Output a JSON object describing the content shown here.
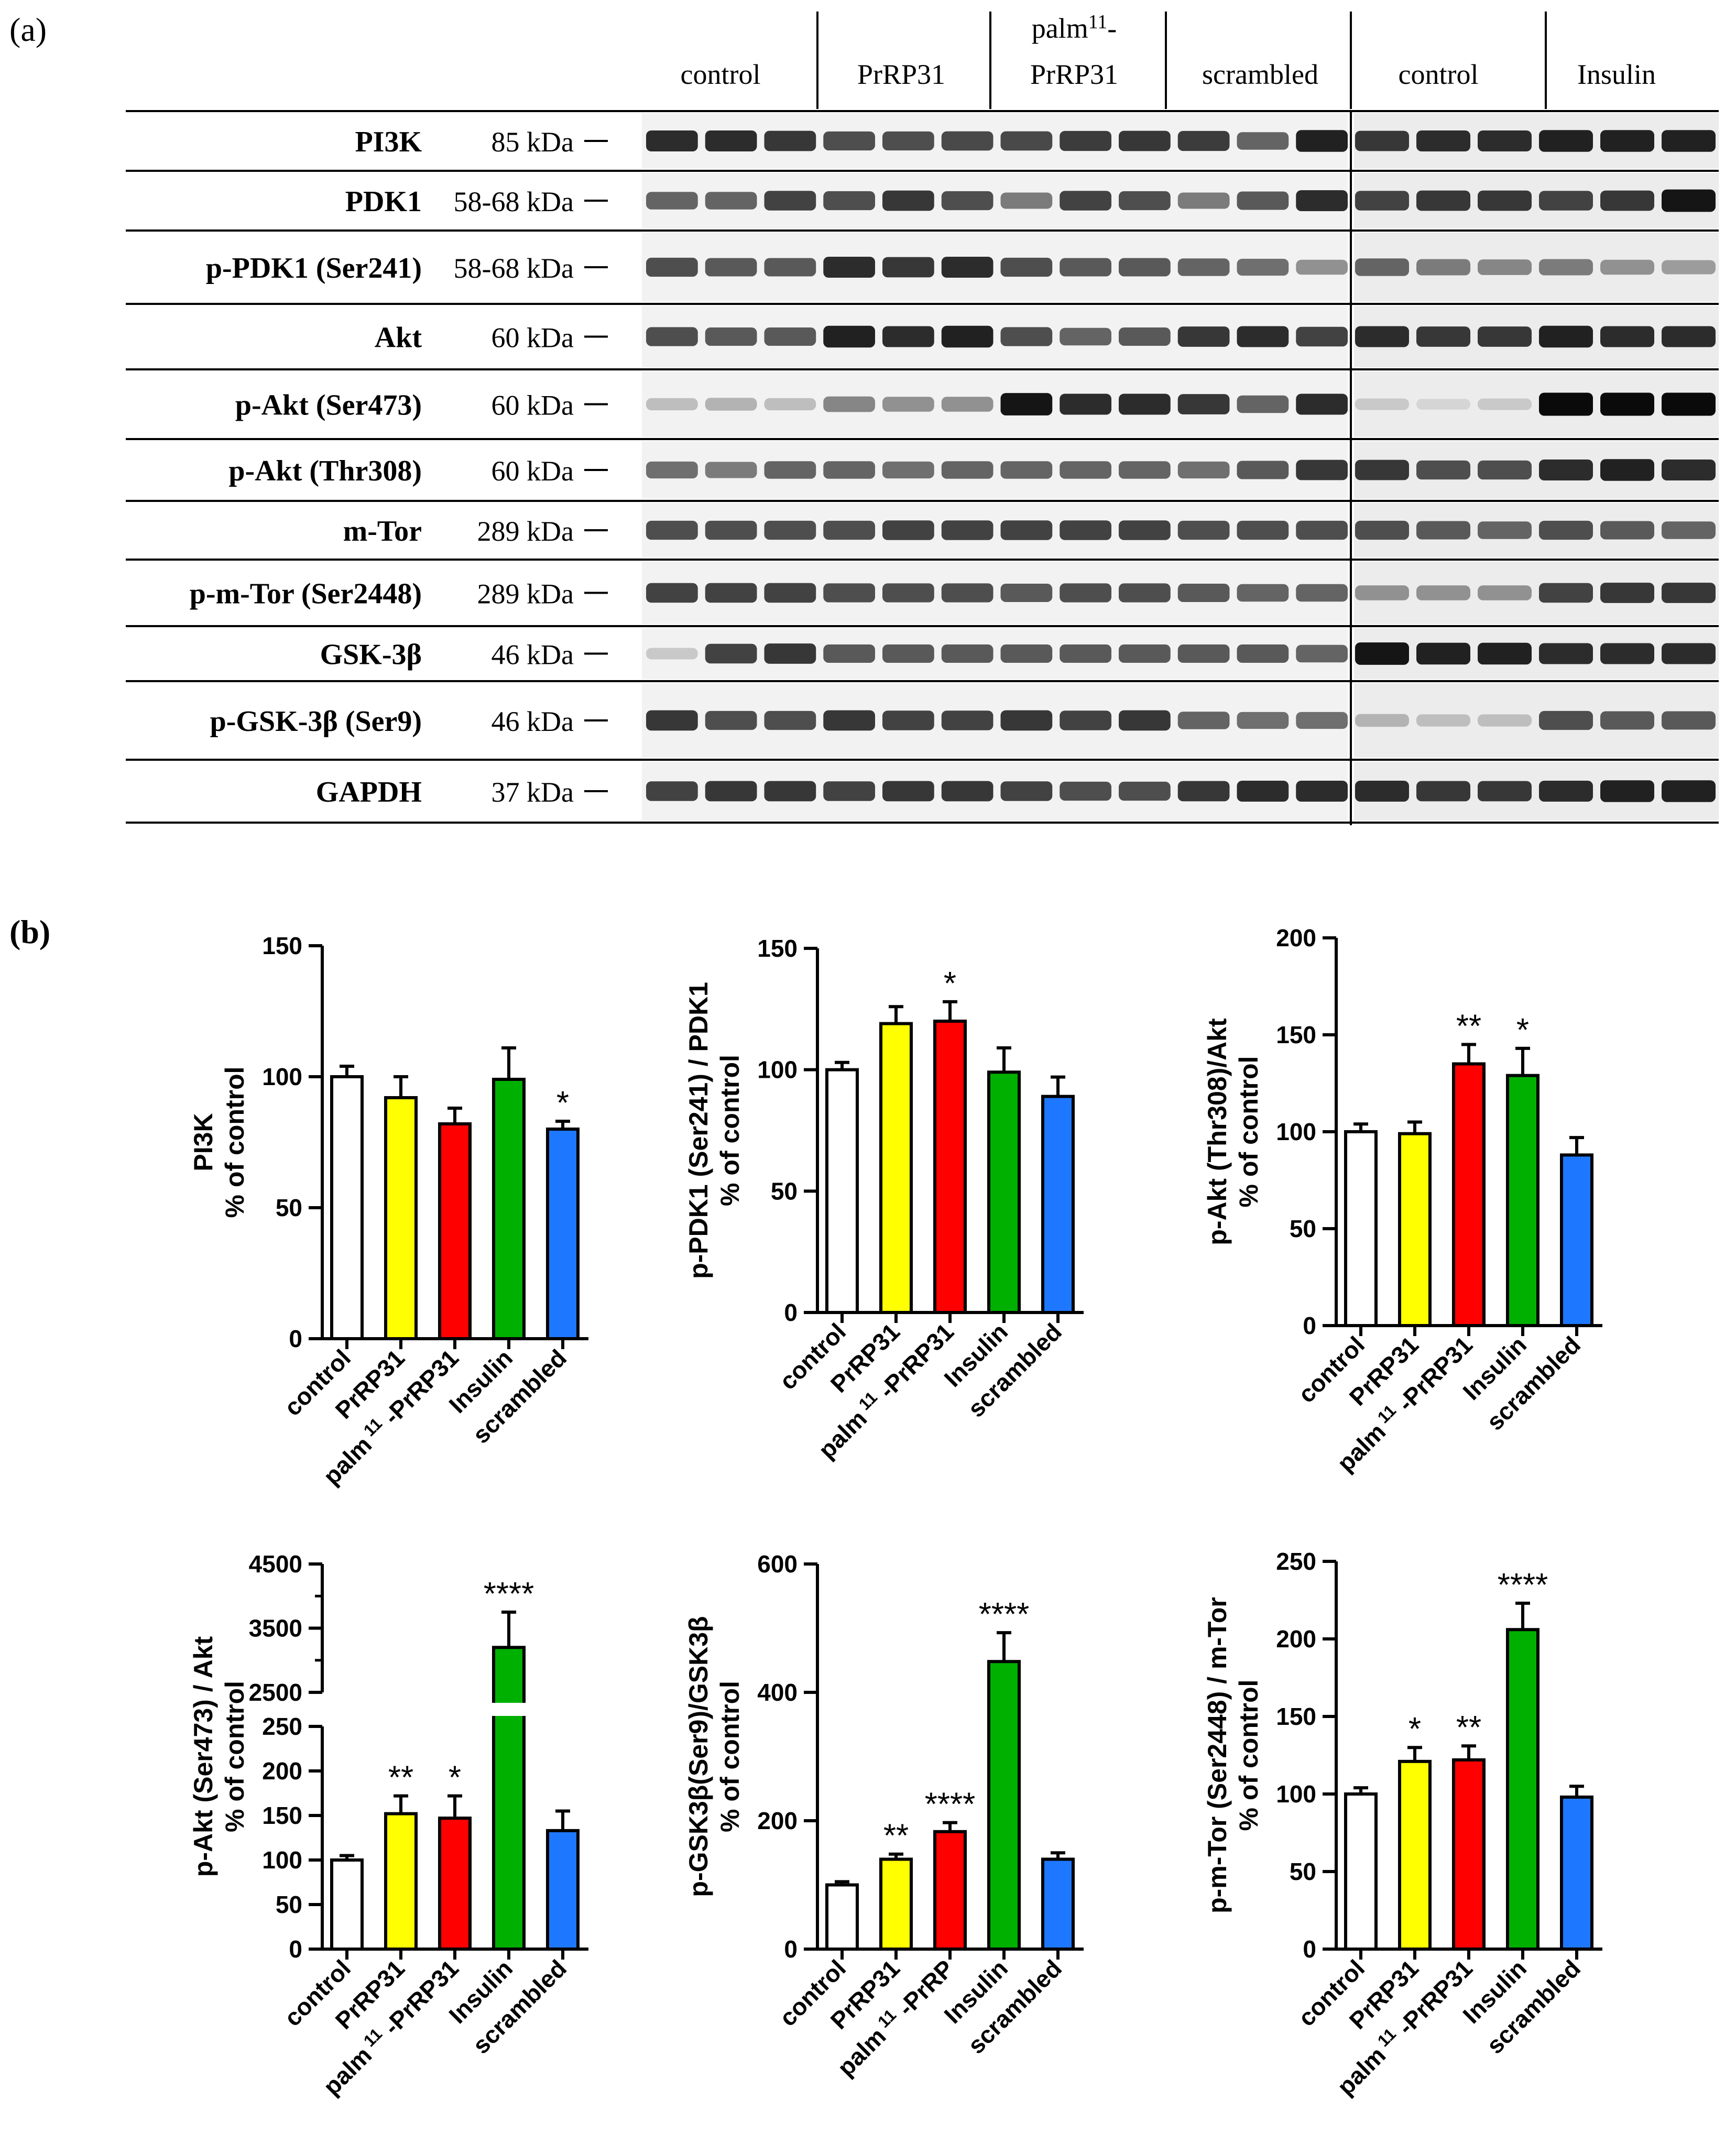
{
  "panel_labels": {
    "a": "(a)",
    "b": "(b)"
  },
  "blot": {
    "lane_groups": [
      {
        "label": "control",
        "lanes": 3
      },
      {
        "label": "PrRP31",
        "lanes": 3
      },
      {
        "label_line1": "palm",
        "label_sup": "11",
        "label_line1_end": "-",
        "label_line2": "PrRP31",
        "lanes": 3
      },
      {
        "label": "scrambled",
        "lanes": 3
      },
      {
        "label": "control",
        "lanes": 3
      },
      {
        "label": "Insulin",
        "lanes": 3
      }
    ],
    "rows": [
      {
        "protein": "PI3K",
        "mw": "85 kDa",
        "intensity": [
          0.85,
          0.85,
          0.8,
          0.7,
          0.7,
          0.72,
          0.72,
          0.78,
          0.8,
          0.78,
          0.6,
          0.9,
          0.8,
          0.85,
          0.85,
          0.9,
          0.9,
          0.9
        ]
      },
      {
        "protein": "PDK1",
        "mw": "58-68 kDa",
        "intensity": [
          0.6,
          0.6,
          0.75,
          0.7,
          0.8,
          0.7,
          0.5,
          0.75,
          0.7,
          0.5,
          0.65,
          0.85,
          0.75,
          0.8,
          0.8,
          0.75,
          0.8,
          0.95
        ]
      },
      {
        "protein": "p-PDK1 (Ser241)",
        "mw": "58-68 kDa",
        "intensity": [
          0.7,
          0.65,
          0.65,
          0.85,
          0.8,
          0.85,
          0.7,
          0.65,
          0.65,
          0.6,
          0.55,
          0.4,
          0.6,
          0.5,
          0.45,
          0.5,
          0.4,
          0.35
        ]
      },
      {
        "protein": "Akt",
        "mw": "60 kDa",
        "intensity": [
          0.7,
          0.65,
          0.65,
          0.9,
          0.85,
          0.9,
          0.7,
          0.6,
          0.65,
          0.8,
          0.85,
          0.75,
          0.85,
          0.8,
          0.8,
          0.9,
          0.85,
          0.85
        ]
      },
      {
        "protein": "p-Akt (Ser473)",
        "mw": "60 kDa",
        "intensity": [
          0.2,
          0.25,
          0.2,
          0.45,
          0.4,
          0.4,
          0.95,
          0.85,
          0.85,
          0.8,
          0.6,
          0.85,
          0.15,
          0.1,
          0.15,
          1.0,
          1.0,
          1.0
        ]
      },
      {
        "protein": "p-Akt (Thr308)",
        "mw": "60 kDa",
        "intensity": [
          0.55,
          0.5,
          0.6,
          0.6,
          0.55,
          0.6,
          0.6,
          0.6,
          0.6,
          0.55,
          0.65,
          0.8,
          0.8,
          0.7,
          0.7,
          0.85,
          0.9,
          0.85
        ]
      },
      {
        "protein": "m-Tor",
        "mw": "289 kDa",
        "intensity": [
          0.7,
          0.7,
          0.7,
          0.7,
          0.75,
          0.75,
          0.75,
          0.75,
          0.75,
          0.7,
          0.7,
          0.7,
          0.7,
          0.65,
          0.6,
          0.7,
          0.65,
          0.6
        ]
      },
      {
        "protein": "p-m-Tor (Ser2448)",
        "mw": "289 kDa",
        "intensity": [
          0.75,
          0.75,
          0.75,
          0.7,
          0.7,
          0.7,
          0.65,
          0.7,
          0.7,
          0.65,
          0.6,
          0.6,
          0.4,
          0.4,
          0.4,
          0.75,
          0.8,
          0.8
        ]
      },
      {
        "protein": "GSK-3β",
        "mw": "46 kDa",
        "intensity": [
          0.15,
          0.75,
          0.8,
          0.65,
          0.65,
          0.65,
          0.65,
          0.65,
          0.65,
          0.65,
          0.65,
          0.6,
          0.95,
          0.9,
          0.9,
          0.85,
          0.85,
          0.85
        ]
      },
      {
        "protein": "p-GSK-3β (Ser9)",
        "mw": "46 kDa",
        "intensity": [
          0.8,
          0.7,
          0.7,
          0.8,
          0.75,
          0.75,
          0.8,
          0.75,
          0.8,
          0.6,
          0.55,
          0.55,
          0.25,
          0.2,
          0.2,
          0.7,
          0.65,
          0.65
        ]
      },
      {
        "protein": "GAPDH",
        "mw": "37 kDa",
        "intensity": [
          0.75,
          0.8,
          0.8,
          0.75,
          0.8,
          0.8,
          0.75,
          0.7,
          0.7,
          0.8,
          0.85,
          0.85,
          0.85,
          0.8,
          0.8,
          0.85,
          0.9,
          0.9
        ]
      }
    ]
  },
  "colors": {
    "control": "#ffffff",
    "PrRP31": "#ffff00",
    "palm11-PrRP31": "#ff0000",
    "Insulin": "#00b000",
    "scrambled": "#1e78ff"
  },
  "chart_data": [
    {
      "type": "bar",
      "categories": [
        "control",
        "PrRP31",
        "palm11-PrRP31",
        "Insulin",
        "scrambled"
      ],
      "category_labels": [
        {
          "pre": "control"
        },
        {
          "pre": "PrRP31"
        },
        {
          "pre": "palm",
          "sup": "11",
          "post": "-PrRP31"
        },
        {
          "pre": "Insulin"
        },
        {
          "pre": "scrambled"
        }
      ],
      "values": [
        100,
        92,
        82,
        99,
        80
      ],
      "errors": [
        4,
        8,
        6,
        12,
        3
      ],
      "significance": [
        "",
        "",
        "",
        "",
        "*"
      ],
      "ylabel_line1": "PI3K",
      "ylabel_line2": "% of control",
      "ylim": [
        0,
        150
      ],
      "yticks": [
        0,
        50,
        100,
        150
      ]
    },
    {
      "type": "bar",
      "categories": [
        "control",
        "PrRP31",
        "palm11-PrRP31",
        "Insulin",
        "scrambled"
      ],
      "category_labels": [
        {
          "pre": "control"
        },
        {
          "pre": "PrRP31"
        },
        {
          "pre": "palm",
          "sup": "11",
          "post": "-PrRP31"
        },
        {
          "pre": "Insulin"
        },
        {
          "pre": "scrambled"
        }
      ],
      "values": [
        100,
        119,
        120,
        99,
        89
      ],
      "errors": [
        3,
        7,
        8,
        10,
        8
      ],
      "significance": [
        "",
        "",
        "*",
        "",
        ""
      ],
      "ylabel_line1": "p-PDK1 (Ser241) / PDK1",
      "ylabel_line2": "% of control",
      "ylim": [
        0,
        150
      ],
      "yticks": [
        0,
        50,
        100,
        150
      ]
    },
    {
      "type": "bar",
      "categories": [
        "control",
        "PrRP31",
        "palm11-PrRP31",
        "Insulin",
        "scrambled"
      ],
      "category_labels": [
        {
          "pre": "control"
        },
        {
          "pre": "PrRP31"
        },
        {
          "pre": "palm",
          "sup": "11",
          "post": "-PrRP31"
        },
        {
          "pre": "Insulin"
        },
        {
          "pre": "scrambled"
        }
      ],
      "values": [
        100,
        99,
        135,
        129,
        88
      ],
      "errors": [
        4,
        6,
        10,
        14,
        9
      ],
      "significance": [
        "",
        "",
        "**",
        "*",
        ""
      ],
      "ylabel_line1": "p-Akt (Thr308)/Akt",
      "ylabel_line2": "% of control",
      "ylim": [
        0,
        200
      ],
      "yticks": [
        0,
        50,
        100,
        150,
        200
      ]
    },
    {
      "type": "bar",
      "broken_axis": true,
      "categories": [
        "control",
        "PrRP31",
        "palm11-PrRP31",
        "Insulin",
        "scrambled"
      ],
      "category_labels": [
        {
          "pre": "control"
        },
        {
          "pre": "PrRP31"
        },
        {
          "pre": "palm",
          "sup": "11",
          "post": "-PrRP31"
        },
        {
          "pre": "Insulin"
        },
        {
          "pre": "scrambled"
        }
      ],
      "values": [
        100,
        152,
        147,
        3200,
        133
      ],
      "errors": [
        5,
        20,
        25,
        550,
        22
      ],
      "significance": [
        "",
        "**",
        "*",
        "****",
        ""
      ],
      "ylabel_line1": "p-Akt (Ser473) / Akt",
      "ylabel_line2": "% of control",
      "ylim_lower": [
        0,
        250
      ],
      "ylim_upper": [
        2500,
        4500
      ],
      "yticks_lower": [
        0,
        50,
        100,
        150,
        200,
        250
      ],
      "yticks_upper": [
        2500,
        3500,
        4500
      ]
    },
    {
      "type": "bar",
      "categories": [
        "control",
        "PrRP31",
        "palm11-PrRP",
        "Insulin",
        "scrambled"
      ],
      "category_labels": [
        {
          "pre": "control"
        },
        {
          "pre": "PrRP31"
        },
        {
          "pre": "palm",
          "sup": "11",
          "post": "-PrRP"
        },
        {
          "pre": "Insulin"
        },
        {
          "pre": "scrambled"
        }
      ],
      "values": [
        100,
        140,
        183,
        448,
        140
      ],
      "errors": [
        5,
        8,
        14,
        45,
        10
      ],
      "significance": [
        "",
        "**",
        "****",
        "****",
        ""
      ],
      "ylabel_line1": "p-GSK3β(Ser9)/GSK3β",
      "ylabel_line2": "% of control",
      "ylim": [
        0,
        600
      ],
      "yticks": [
        0,
        200,
        400,
        600
      ]
    },
    {
      "type": "bar",
      "categories": [
        "control",
        "PrRP31",
        "palm11-PrRP31",
        "Insulin",
        "scrambled"
      ],
      "category_labels": [
        {
          "pre": "control"
        },
        {
          "pre": "PrRP31"
        },
        {
          "pre": "palm",
          "sup": "11",
          "post": "-PrRP31"
        },
        {
          "pre": "Insulin"
        },
        {
          "pre": "scrambled"
        }
      ],
      "values": [
        100,
        121,
        122,
        206,
        98
      ],
      "errors": [
        4,
        9,
        9,
        17,
        7
      ],
      "significance": [
        "",
        "*",
        "**",
        "****",
        ""
      ],
      "ylabel_line1": "p-m-Tor (Ser2448) / m-Tor",
      "ylabel_line2": "% of control",
      "ylim": [
        0,
        250
      ],
      "yticks": [
        0,
        50,
        100,
        150,
        200,
        250
      ]
    }
  ]
}
